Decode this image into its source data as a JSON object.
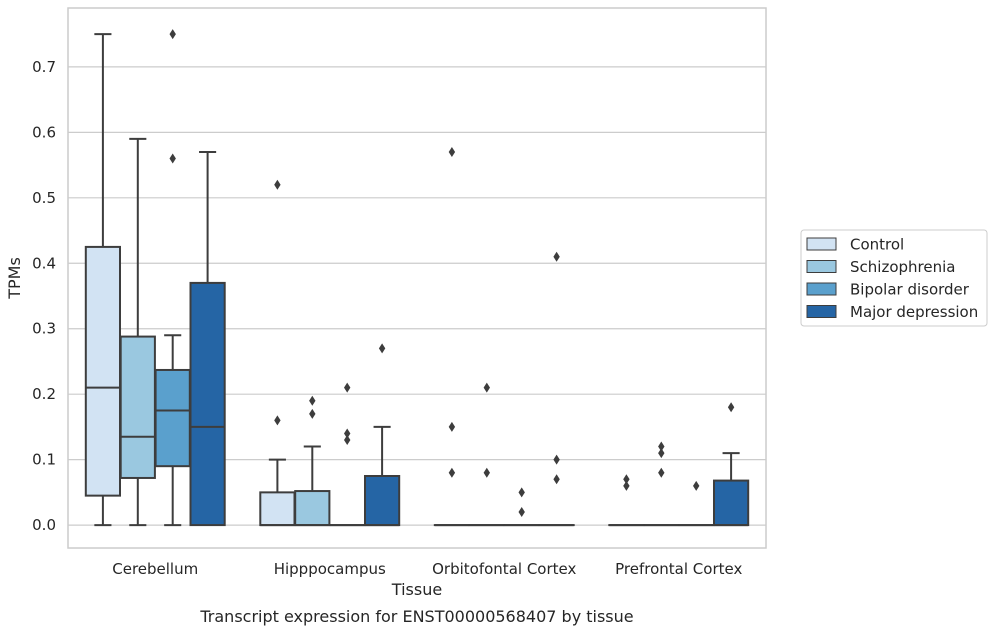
{
  "chart_data": {
    "type": "box",
    "xlabel": "Tissue",
    "ylabel": "TPMs",
    "caption": "Transcript expression for ENST00000568407 by tissue",
    "ylim": [
      -0.035,
      0.79
    ],
    "yticks": [
      0.0,
      0.1,
      0.2,
      0.3,
      0.4,
      0.5,
      0.6,
      0.7
    ],
    "yticks_labels": [
      "0.0",
      "0.1",
      "0.2",
      "0.3",
      "0.4",
      "0.5",
      "0.6",
      "0.7"
    ],
    "grid": true,
    "legend_position": "right",
    "categories": [
      "Cerebellum",
      "Hipppocampus",
      "Orbitofontal Cortex",
      "Prefrontal Cortex"
    ],
    "series": [
      {
        "name": "Control",
        "color": "#d2e3f3",
        "boxes": [
          {
            "whislo": 0.0,
            "q1": 0.045,
            "med": 0.21,
            "q3": 0.425,
            "whishi": 0.75,
            "fliers": []
          },
          {
            "whislo": 0.0,
            "q1": 0.0,
            "med": 0.0,
            "q3": 0.05,
            "whishi": 0.1,
            "fliers": [
              0.16,
              0.52
            ]
          },
          {
            "whislo": 0.0,
            "q1": 0.0,
            "med": 0.0,
            "q3": 0.0,
            "whishi": 0.0,
            "fliers": [
              0.08,
              0.15,
              0.57
            ]
          },
          {
            "whislo": 0.0,
            "q1": 0.0,
            "med": 0.0,
            "q3": 0.0,
            "whishi": 0.0,
            "fliers": [
              0.06,
              0.07
            ]
          }
        ]
      },
      {
        "name": "Schizophrenia",
        "color": "#9ac8e0",
        "boxes": [
          {
            "whislo": 0.0,
            "q1": 0.072,
            "med": 0.135,
            "q3": 0.288,
            "whishi": 0.59,
            "fliers": []
          },
          {
            "whislo": 0.0,
            "q1": 0.0,
            "med": 0.0,
            "q3": 0.052,
            "whishi": 0.12,
            "fliers": [
              0.17,
              0.19
            ]
          },
          {
            "whislo": 0.0,
            "q1": 0.0,
            "med": 0.0,
            "q3": 0.0,
            "whishi": 0.0,
            "fliers": [
              0.08,
              0.21
            ]
          },
          {
            "whislo": 0.0,
            "q1": 0.0,
            "med": 0.0,
            "q3": 0.0,
            "whishi": 0.0,
            "fliers": [
              0.08,
              0.11,
              0.12
            ]
          }
        ]
      },
      {
        "name": "Bipolar disorder",
        "color": "#5aa0cd",
        "boxes": [
          {
            "whislo": 0.0,
            "q1": 0.09,
            "med": 0.175,
            "q3": 0.237,
            "whishi": 0.29,
            "fliers": [
              0.56,
              0.75
            ]
          },
          {
            "whislo": 0.0,
            "q1": 0.0,
            "med": 0.0,
            "q3": 0.0,
            "whishi": 0.0,
            "fliers": [
              0.13,
              0.14,
              0.21
            ]
          },
          {
            "whislo": 0.0,
            "q1": 0.0,
            "med": 0.0,
            "q3": 0.0,
            "whishi": 0.0,
            "fliers": [
              0.02,
              0.05
            ]
          },
          {
            "whislo": 0.0,
            "q1": 0.0,
            "med": 0.0,
            "q3": 0.0,
            "whishi": 0.0,
            "fliers": [
              0.06
            ]
          }
        ]
      },
      {
        "name": "Major depression",
        "color": "#2565a5",
        "boxes": [
          {
            "whislo": 0.0,
            "q1": 0.0,
            "med": 0.15,
            "q3": 0.37,
            "whishi": 0.57,
            "fliers": []
          },
          {
            "whislo": 0.0,
            "q1": 0.0,
            "med": 0.0,
            "q3": 0.075,
            "whishi": 0.15,
            "fliers": [
              0.27
            ]
          },
          {
            "whislo": 0.0,
            "q1": 0.0,
            "med": 0.0,
            "q3": 0.0,
            "whishi": 0.0,
            "fliers": [
              0.07,
              0.1,
              0.41
            ]
          },
          {
            "whislo": 0.0,
            "q1": 0.0,
            "med": 0.0,
            "q3": 0.068,
            "whishi": 0.11,
            "fliers": [
              0.18
            ]
          }
        ]
      }
    ]
  }
}
